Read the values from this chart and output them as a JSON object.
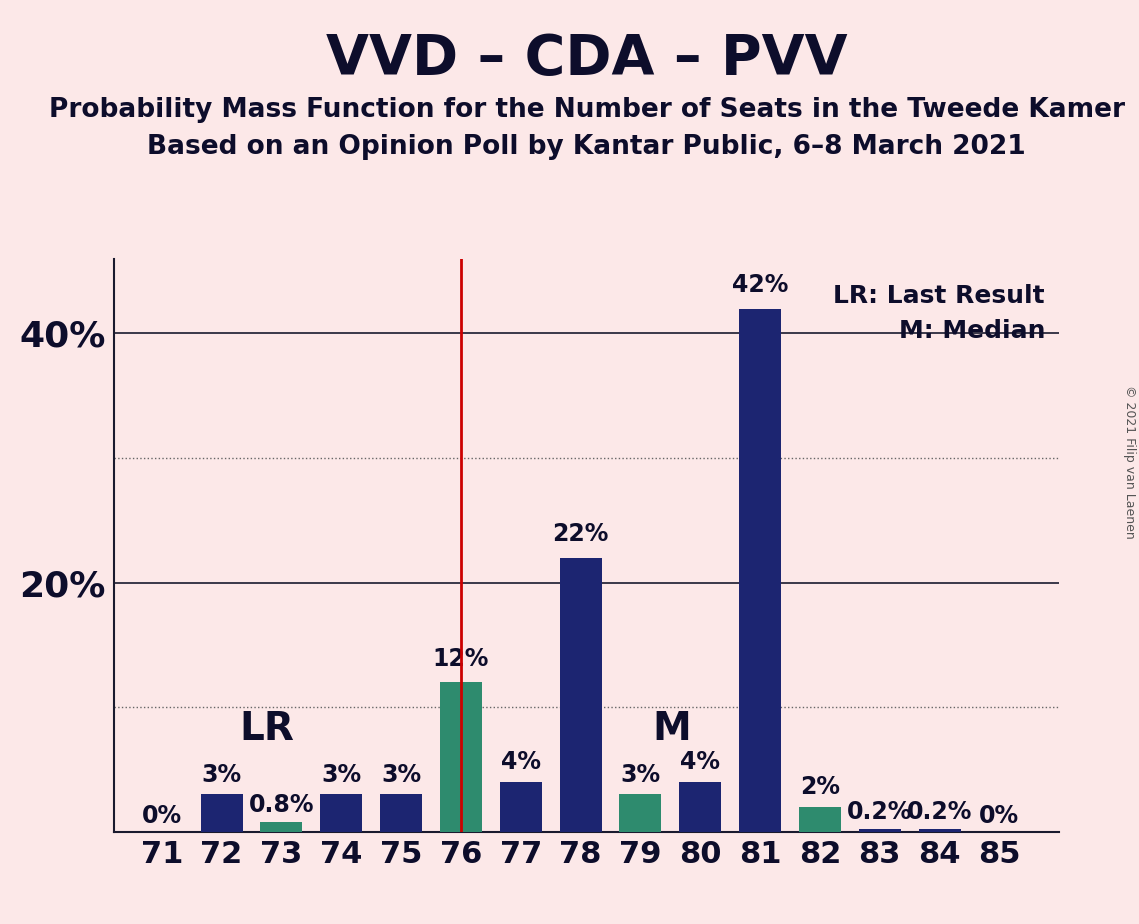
{
  "title": "VVD – CDA – PVV",
  "subtitle1": "Probability Mass Function for the Number of Seats in the Tweede Kamer",
  "subtitle2": "Based on an Opinion Poll by Kantar Public, 6–8 March 2021",
  "copyright": "© 2021 Filip van Laenen",
  "seats": [
    71,
    72,
    73,
    74,
    75,
    76,
    77,
    78,
    79,
    80,
    81,
    82,
    83,
    84,
    85
  ],
  "values": [
    0,
    3,
    0.8,
    3,
    3,
    12,
    4,
    22,
    3,
    4,
    42,
    2,
    0.2,
    0.2,
    0
  ],
  "labels": [
    "0%",
    "3%",
    "0.8%",
    "3%",
    "3%",
    "12%",
    "4%",
    "22%",
    "3%",
    "4%",
    "42%",
    "2%",
    "0.2%",
    "0.2%",
    "0%"
  ],
  "bar_colors": [
    "#1c2571",
    "#1c2571",
    "#2e8b6e",
    "#1c2571",
    "#1c2571",
    "#2e8b6e",
    "#1c2571",
    "#1c2571",
    "#2e8b6e",
    "#1c2571",
    "#1c2571",
    "#2e8b6e",
    "#1c2571",
    "#1c2571",
    "#1c2571"
  ],
  "lr_seat": 76,
  "median_seat": 79,
  "lr_label": "LR",
  "median_label": "M",
  "legend_lr": "LR: Last Result",
  "legend_m": "M: Median",
  "vline_color": "#cc0000",
  "background_color": "#fce8e8",
  "ylim": [
    0,
    46
  ],
  "ytick_labeled": [
    20,
    40
  ],
  "ytick_dotted": [
    10,
    30
  ],
  "ytick_solid": [
    20,
    40
  ],
  "yticklabels": {
    "20": "20%",
    "40": "40%"
  },
  "spine_color": "#1a1a2e",
  "grid_color": "#666666",
  "bar_width": 0.7,
  "title_fontsize": 40,
  "subtitle_fontsize": 19,
  "ytick_fontsize": 26,
  "xtick_fontsize": 22,
  "label_fontsize": 17,
  "lr_m_fontsize": 28,
  "legend_fontsize": 18
}
